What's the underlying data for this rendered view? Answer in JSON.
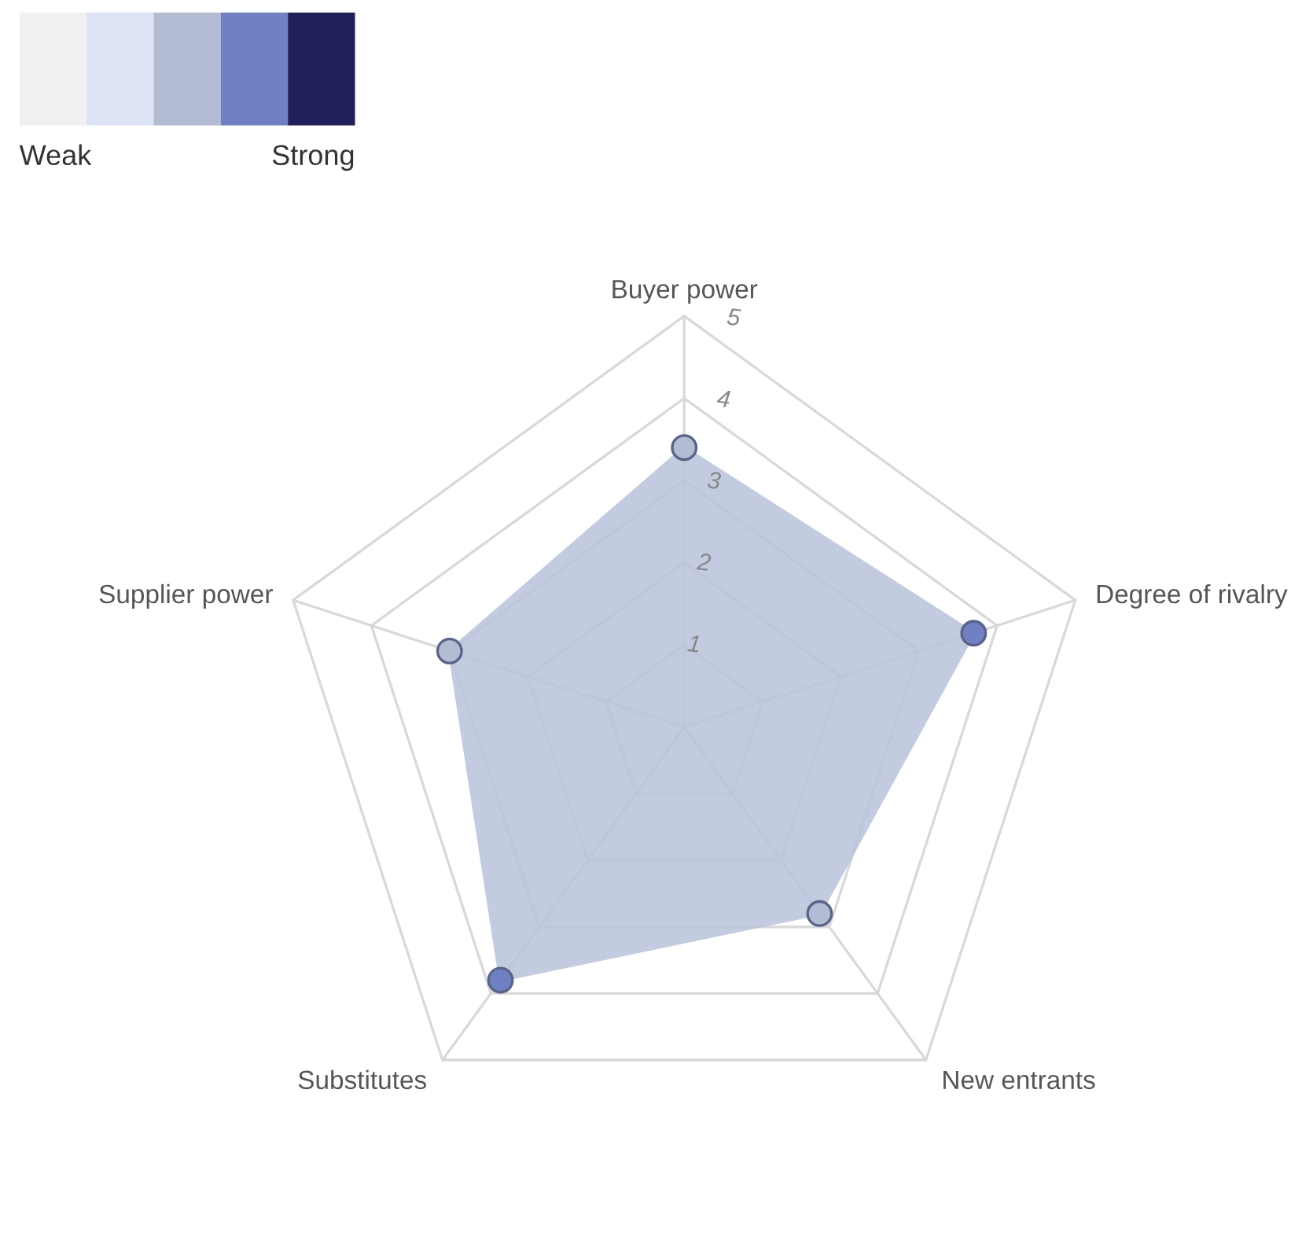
{
  "chart_data": {
    "type": "radar",
    "categories": [
      "Buyer power",
      "Degree of rivalry",
      "New entrants",
      "Substitutes",
      "Supplier power"
    ],
    "series": [
      {
        "color": "#b9c3dc",
        "values": [
          3.4,
          3.7,
          2.8,
          3.8,
          3.0
        ]
      }
    ],
    "colors": [
      "#b4bcd4",
      "#6f80c4",
      "#b4bcd4",
      "#6f80c4",
      "#b4bcd4"
    ],
    "ylim": [
      0,
      5
    ],
    "yticks": [
      1,
      2,
      3,
      4,
      5
    ],
    "grid": true,
    "marker": "circle",
    "annotations": [
      "Weak",
      "Strong"
    ]
  }
}
